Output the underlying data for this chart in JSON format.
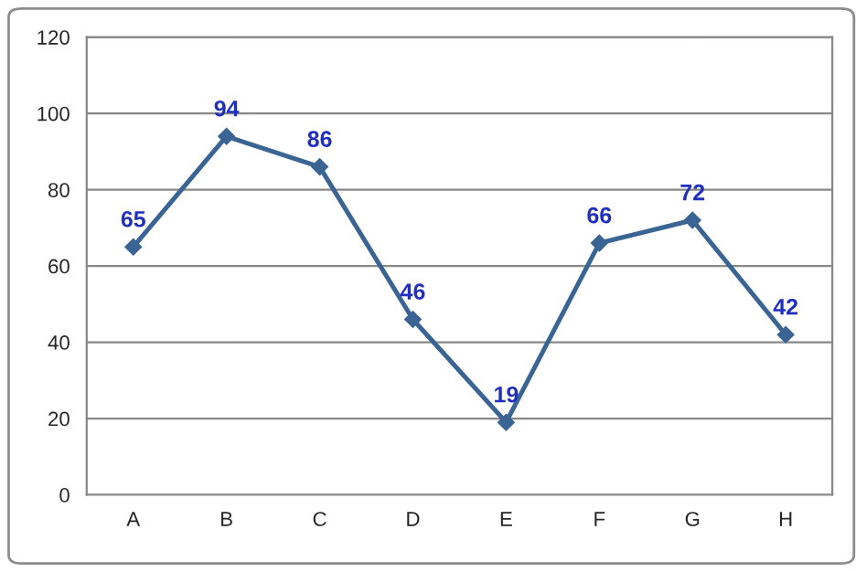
{
  "chart_data": {
    "type": "line",
    "categories": [
      "A",
      "B",
      "C",
      "D",
      "E",
      "F",
      "G",
      "H"
    ],
    "series": [
      {
        "color": "#3a6494",
        "values": [
          65,
          94,
          86,
          46,
          19,
          66,
          72,
          42
        ]
      }
    ],
    "ylim": [
      0,
      120
    ],
    "yticks": [
      0,
      20,
      40,
      60,
      80,
      100,
      120
    ],
    "grid": "y",
    "legend": false,
    "marker": "diamond",
    "line_style": "solid",
    "data_labels": true
  }
}
